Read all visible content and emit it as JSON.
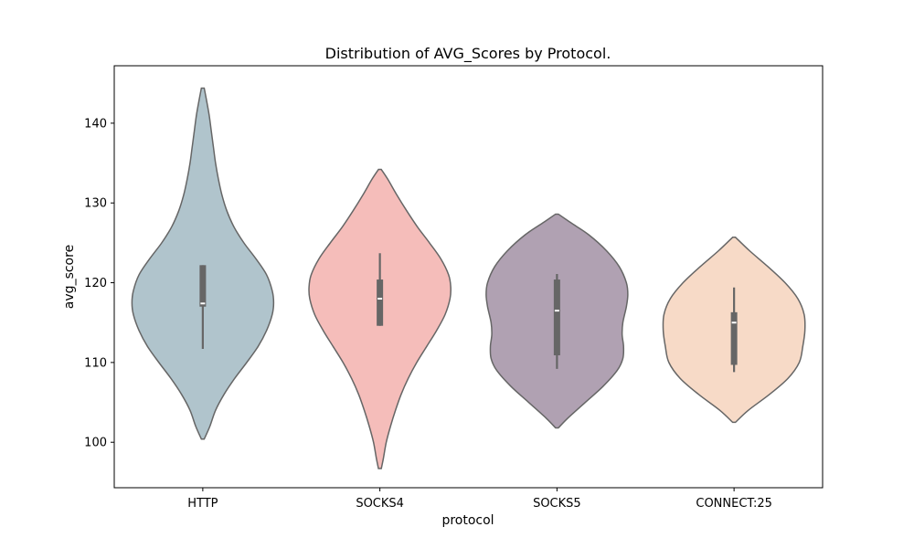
{
  "chart_data": {
    "type": "violin",
    "title": "Distribution of AVG_Scores by Protocol.",
    "xlabel": "protocol",
    "ylabel": "avg_score",
    "ylim": [
      94.3,
      147.2
    ],
    "y_ticks": [
      100,
      110,
      120,
      130,
      140
    ],
    "categories": [
      "HTTP",
      "SOCKS4",
      "SOCKS5",
      "CONNECT:25"
    ],
    "grid": false,
    "legend": "none",
    "violins": [
      {
        "category": "HTTP",
        "color": "#B0C4CC",
        "min": 100.4,
        "max": 144.4,
        "median": 117.4,
        "q1": 117.0,
        "q3": 122.2,
        "whisker_low": 111.7,
        "whisker_high": 122.2,
        "density_profile": [
          [
            100.4,
            0.02
          ],
          [
            102,
            0.1
          ],
          [
            104,
            0.18
          ],
          [
            106,
            0.3
          ],
          [
            108,
            0.45
          ],
          [
            110,
            0.62
          ],
          [
            112,
            0.78
          ],
          [
            114,
            0.9
          ],
          [
            116,
            0.98
          ],
          [
            117.5,
            1.0
          ],
          [
            119,
            0.98
          ],
          [
            121,
            0.9
          ],
          [
            123,
            0.75
          ],
          [
            125,
            0.58
          ],
          [
            127,
            0.44
          ],
          [
            129,
            0.34
          ],
          [
            131,
            0.27
          ],
          [
            133,
            0.22
          ],
          [
            135,
            0.18
          ],
          [
            137,
            0.15
          ],
          [
            139,
            0.12
          ],
          [
            141,
            0.09
          ],
          [
            143,
            0.05
          ],
          [
            144.4,
            0.02
          ]
        ]
      },
      {
        "category": "SOCKS4",
        "color": "#F5BDBA",
        "min": 96.7,
        "max": 134.2,
        "median": 118.0,
        "q1": 114.6,
        "q3": 120.4,
        "whisker_low": 114.6,
        "whisker_high": 123.7,
        "density_profile": [
          [
            96.7,
            0.02
          ],
          [
            98,
            0.05
          ],
          [
            100,
            0.09
          ],
          [
            102,
            0.15
          ],
          [
            104,
            0.22
          ],
          [
            106,
            0.3
          ],
          [
            108,
            0.4
          ],
          [
            110,
            0.52
          ],
          [
            112,
            0.66
          ],
          [
            114,
            0.8
          ],
          [
            116,
            0.92
          ],
          [
            118,
            0.99
          ],
          [
            119.5,
            1.0
          ],
          [
            121,
            0.97
          ],
          [
            123,
            0.86
          ],
          [
            125,
            0.7
          ],
          [
            127,
            0.53
          ],
          [
            129,
            0.38
          ],
          [
            131,
            0.24
          ],
          [
            133,
            0.11
          ],
          [
            134.2,
            0.02
          ]
        ]
      },
      {
        "category": "SOCKS5",
        "color": "#B0A1B2",
        "min": 101.8,
        "max": 128.6,
        "median": 116.5,
        "q1": 110.9,
        "q3": 120.4,
        "whisker_low": 109.2,
        "whisker_high": 121.1,
        "density_profile": [
          [
            101.8,
            0.02
          ],
          [
            103,
            0.15
          ],
          [
            105,
            0.4
          ],
          [
            107,
            0.65
          ],
          [
            109,
            0.85
          ],
          [
            110.5,
            0.93
          ],
          [
            112,
            0.94
          ],
          [
            113.5,
            0.92
          ],
          [
            115,
            0.93
          ],
          [
            117,
            0.98
          ],
          [
            118.5,
            1.0
          ],
          [
            120,
            0.98
          ],
          [
            122,
            0.88
          ],
          [
            124,
            0.7
          ],
          [
            126,
            0.45
          ],
          [
            127.5,
            0.2
          ],
          [
            128.6,
            0.02
          ]
        ]
      },
      {
        "category": "CONNECT:25",
        "color": "#F7DAC7",
        "min": 102.5,
        "max": 125.7,
        "median": 115.0,
        "q1": 109.7,
        "q3": 116.3,
        "whisker_low": 108.8,
        "whisker_high": 119.4,
        "density_profile": [
          [
            102.5,
            0.02
          ],
          [
            104,
            0.2
          ],
          [
            106,
            0.5
          ],
          [
            108,
            0.76
          ],
          [
            110,
            0.92
          ],
          [
            112,
            0.97
          ],
          [
            114,
            1.0
          ],
          [
            116,
            0.99
          ],
          [
            118,
            0.9
          ],
          [
            120,
            0.72
          ],
          [
            122,
            0.48
          ],
          [
            124,
            0.22
          ],
          [
            125.7,
            0.02
          ]
        ]
      }
    ],
    "style": {
      "outline_color": "#666666",
      "box_color": "#666666",
      "median_color": "#ffffff"
    }
  }
}
